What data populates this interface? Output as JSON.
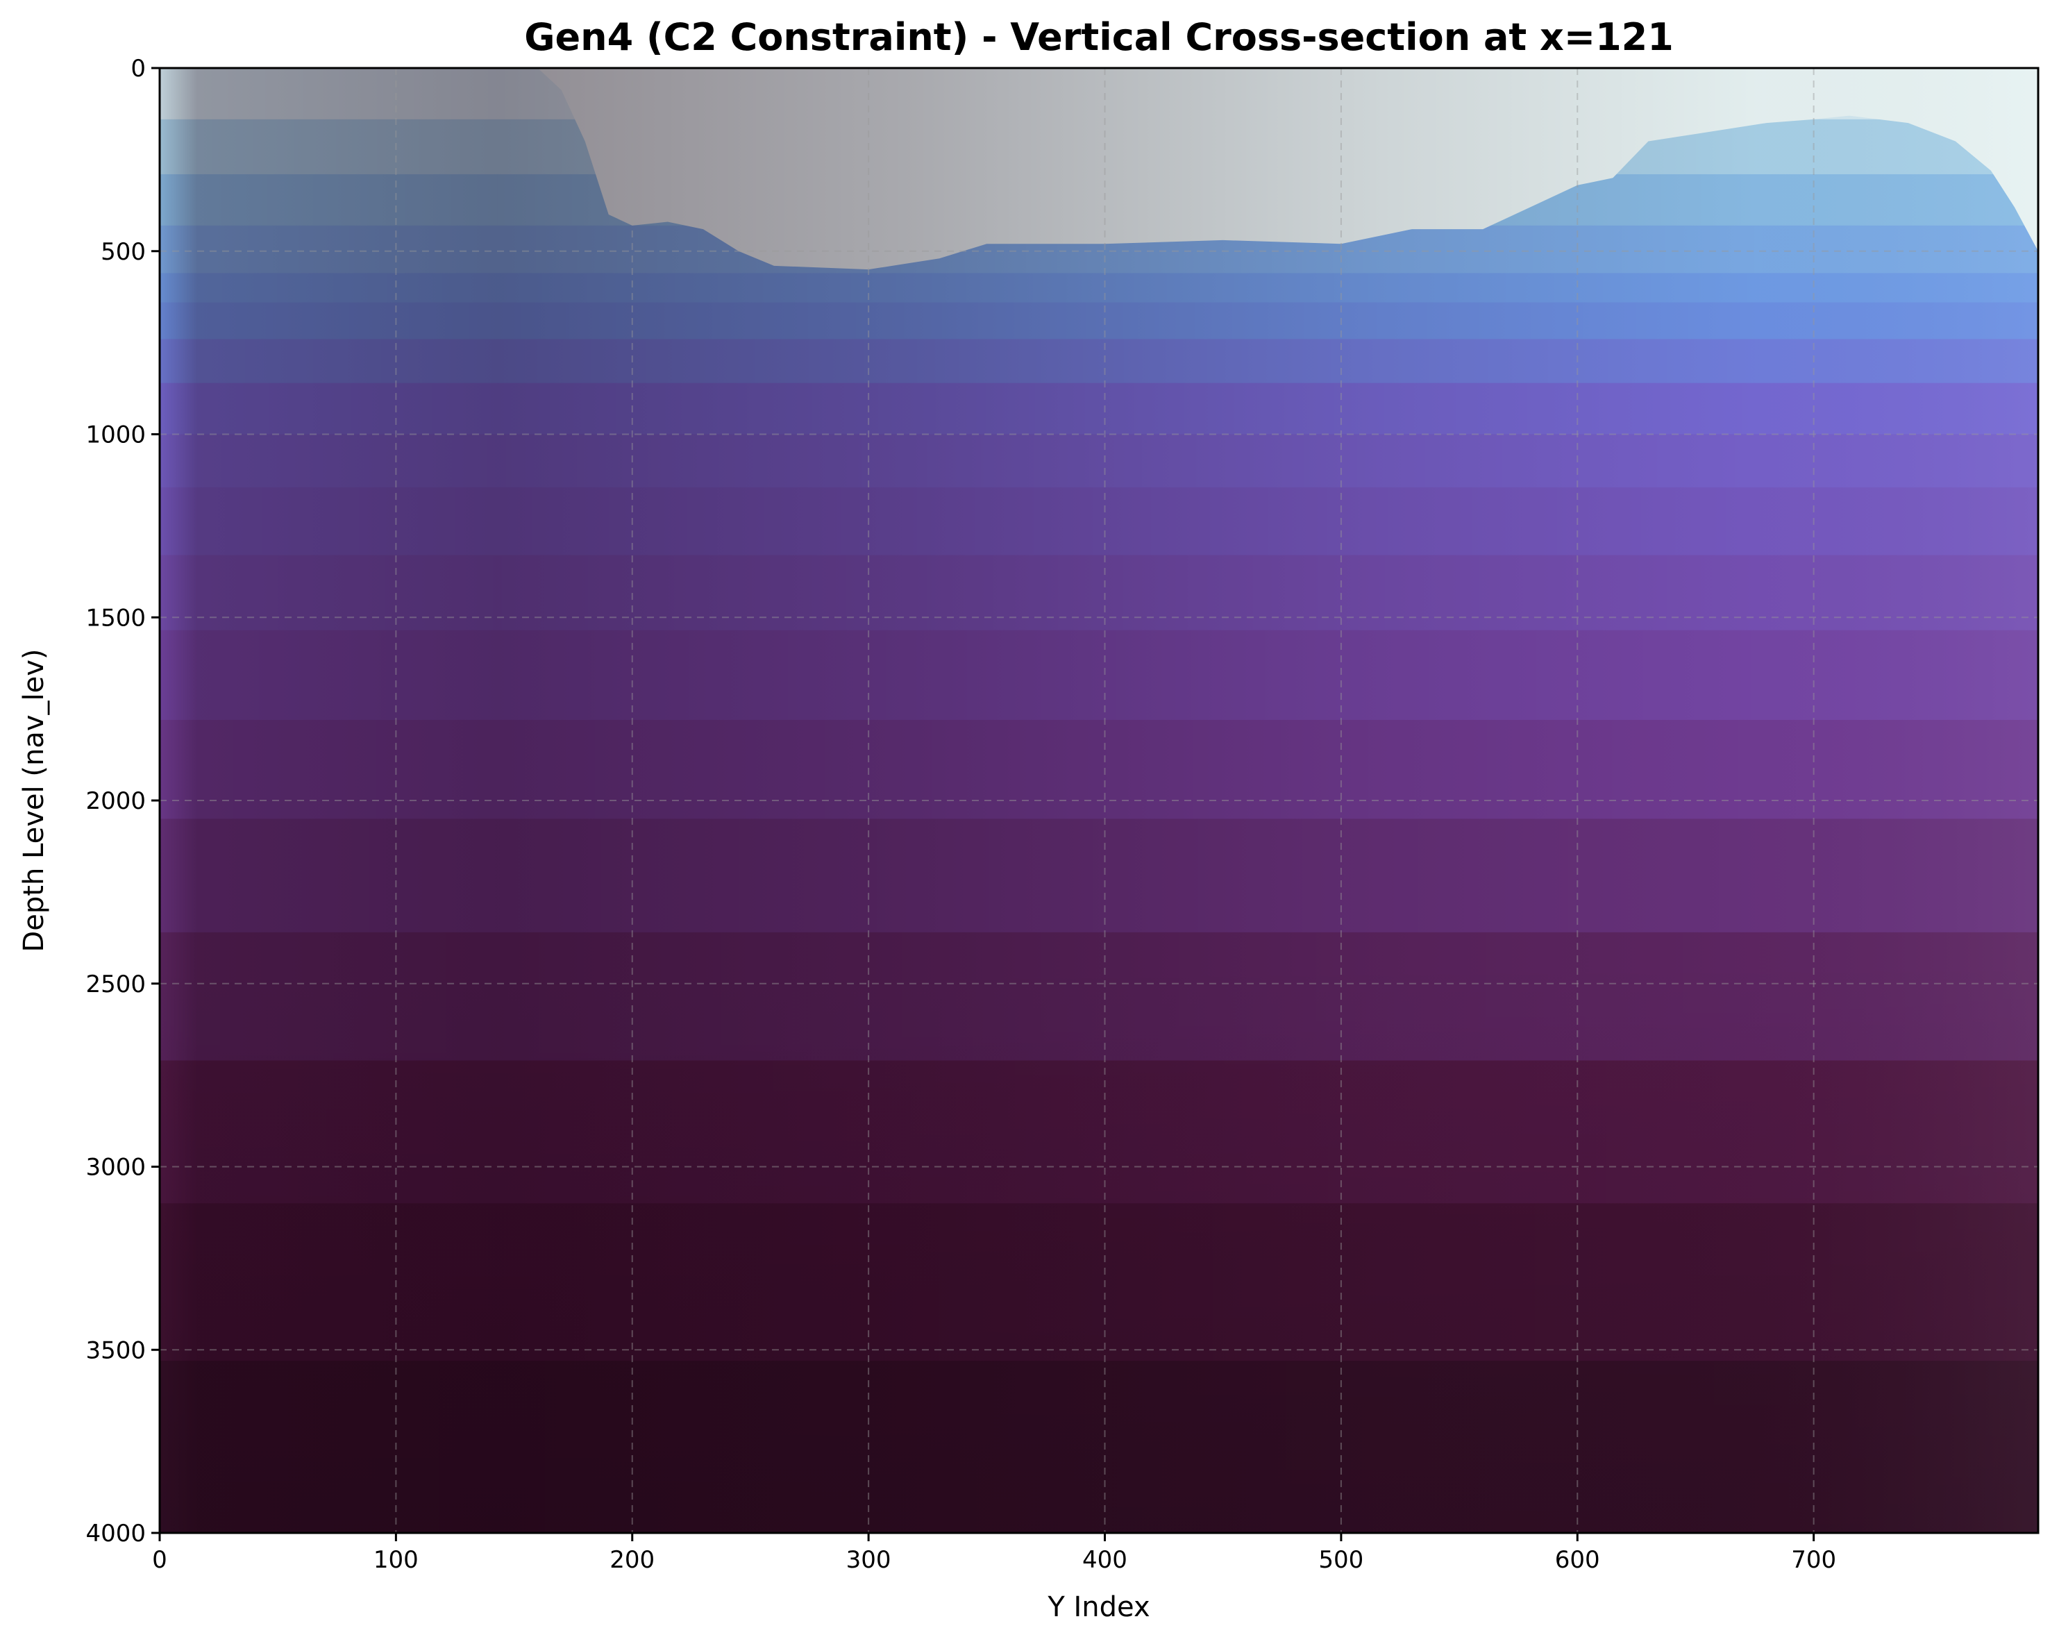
{
  "chart_data": {
    "type": "heatmap",
    "title": "Gen4 (C2 Constraint) - Vertical Cross-section at x=121",
    "xlabel": "Y Index",
    "ylabel": "Depth Level (nav_lev)",
    "xlim": [
      0,
      795
    ],
    "ylim": [
      4000,
      0
    ],
    "y_inverted": true,
    "xticks": [
      0,
      100,
      200,
      300,
      400,
      500,
      600,
      700
    ],
    "yticks": [
      0,
      500,
      1000,
      1500,
      2000,
      2500,
      3000,
      3500,
      4000
    ],
    "grid": true,
    "colormap": "twilight (white-blue-purple-dark)",
    "colors": {
      "near_surface": "#e6f2f2",
      "light_blue": "#8ec3e3",
      "blue": "#6a96e6",
      "violet": "#7666d2",
      "purple": "#74409c",
      "dark_purple": "#4e163e",
      "deepest": "#2e0e22"
    },
    "depth_layers": [
      0,
      140,
      290,
      430,
      560,
      640,
      740,
      860,
      1000,
      1145,
      1330,
      1535,
      1780,
      2050,
      2360,
      2710,
      3100,
      3530,
      4000
    ],
    "surface_boundary": {
      "y": [
        0,
        150,
        160,
        170,
        180,
        190,
        200,
        215,
        230,
        245,
        260,
        300,
        330,
        350,
        400,
        450,
        500,
        530,
        560,
        580,
        600,
        615,
        630,
        650,
        680,
        700,
        715,
        740,
        760,
        775,
        785,
        795
      ],
      "depth": [
        0,
        0,
        0,
        60,
        200,
        400,
        430,
        420,
        440,
        500,
        540,
        550,
        520,
        480,
        480,
        470,
        480,
        440,
        440,
        380,
        320,
        300,
        200,
        180,
        150,
        140,
        130,
        150,
        200,
        280,
        380,
        500
      ]
    }
  }
}
